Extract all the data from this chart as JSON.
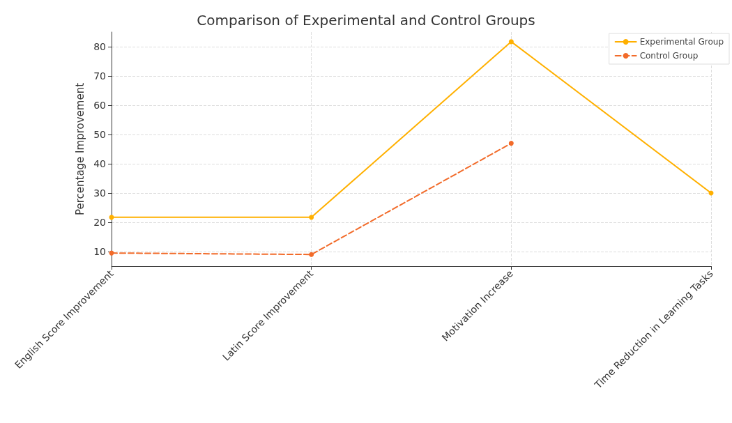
{
  "chart_data": {
    "type": "line",
    "title": "Comparison of Experimental and Control Groups",
    "ylabel": "Percentage Improvement",
    "categories": [
      "English Score Improvement",
      "Latin Score Improvement",
      "Motivation Increase",
      "Time Reduction in Learning Tasks"
    ],
    "series": [
      {
        "name": "Experimental Group",
        "color": "#ffb000",
        "values": [
          21.7,
          21.7,
          81.7,
          30
        ],
        "line_style": "solid"
      },
      {
        "name": "Control Group",
        "color": "#f26b2a",
        "values": [
          9.5,
          9,
          47,
          null
        ],
        "line_style": "dashed"
      }
    ],
    "ylim": [
      5,
      85
    ],
    "yticks": [
      10,
      20,
      30,
      40,
      50,
      60,
      70,
      80
    ],
    "grid": true,
    "legend": "top right",
    "marker": "circle"
  }
}
